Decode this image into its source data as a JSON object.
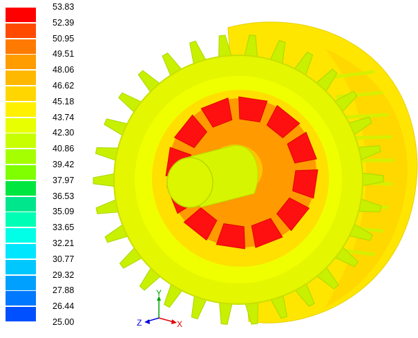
{
  "legend": {
    "ticks": [
      "53.83",
      "52.39",
      "50.95",
      "49.51",
      "48.06",
      "46.62",
      "45.18",
      "43.74",
      "42.30",
      "40.86",
      "39.42",
      "37.97",
      "36.53",
      "35.09",
      "33.65",
      "32.21",
      "30.77",
      "29.32",
      "27.88",
      "26.44",
      "25.00"
    ],
    "colors": [
      "#ff0000",
      "#ff4a00",
      "#ff7a00",
      "#ff9c00",
      "#ffb800",
      "#ffd600",
      "#fff000",
      "#e8ff00",
      "#c8ff00",
      "#a6ff00",
      "#7fff00",
      "#00e640",
      "#00e68c",
      "#00ffb4",
      "#00ffe6",
      "#00e6ff",
      "#00c8ff",
      "#00a0ff",
      "#0078ff",
      "#0050ff",
      "#0000f0"
    ]
  },
  "axes": {
    "y": "Y",
    "z": "Z",
    "x": "X"
  }
}
